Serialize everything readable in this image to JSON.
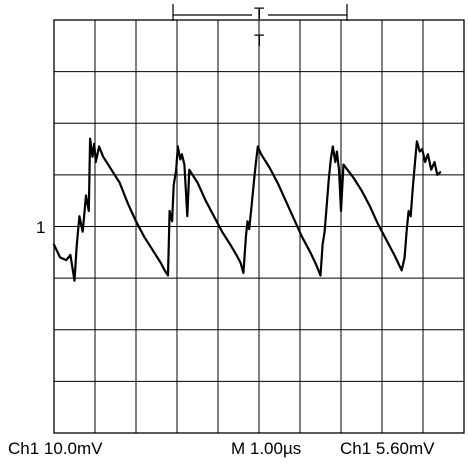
{
  "header": {
    "cursor_marker_label": "T",
    "trigger_marker_label": "T"
  },
  "left_marker": {
    "label": "1"
  },
  "footer": {
    "ch1_scale": "Ch1 10.0mV",
    "timebase": "M 1.00µs",
    "trigger_level": "Ch1 5.60mV"
  },
  "colors": {
    "trace": "#000000",
    "grid": "#000000",
    "background": "#ffffff"
  },
  "chart_data": {
    "type": "line",
    "title": "",
    "xlabel": "",
    "ylabel": "",
    "grid": true,
    "x_divisions": 10,
    "y_divisions": 8,
    "xlim": [
      0,
      10
    ],
    "ylim": [
      -4,
      4
    ],
    "units": {
      "x": "div",
      "y": "div"
    },
    "series": [
      {
        "values": [
          [
            0.0,
            -0.35
          ],
          [
            0.15,
            -0.6
          ],
          [
            0.3,
            -0.65
          ],
          [
            0.4,
            -0.55
          ],
          [
            0.5,
            -1.05
          ],
          [
            0.55,
            -0.4
          ],
          [
            0.62,
            0.2
          ],
          [
            0.7,
            -0.1
          ],
          [
            0.78,
            0.6
          ],
          [
            0.85,
            0.3
          ],
          [
            0.88,
            1.7
          ],
          [
            0.94,
            1.35
          ],
          [
            0.98,
            1.6
          ],
          [
            1.02,
            1.25
          ],
          [
            1.1,
            1.55
          ],
          [
            1.2,
            1.35
          ],
          [
            1.4,
            1.1
          ],
          [
            1.6,
            0.85
          ],
          [
            1.8,
            0.45
          ],
          [
            2.0,
            0.1
          ],
          [
            2.2,
            -0.2
          ],
          [
            2.4,
            -0.45
          ],
          [
            2.6,
            -0.7
          ],
          [
            2.7,
            -0.85
          ],
          [
            2.78,
            -0.95
          ],
          [
            2.82,
            0.3
          ],
          [
            2.88,
            0.1
          ],
          [
            2.92,
            0.8
          ],
          [
            2.98,
            1.1
          ],
          [
            3.02,
            1.55
          ],
          [
            3.08,
            1.3
          ],
          [
            3.12,
            1.4
          ],
          [
            3.18,
            1.2
          ],
          [
            3.25,
            0.2
          ],
          [
            3.3,
            1.1
          ],
          [
            3.5,
            0.85
          ],
          [
            3.7,
            0.5
          ],
          [
            3.9,
            0.2
          ],
          [
            4.1,
            -0.1
          ],
          [
            4.3,
            -0.35
          ],
          [
            4.45,
            -0.55
          ],
          [
            4.55,
            -0.7
          ],
          [
            4.62,
            -0.9
          ],
          [
            4.68,
            -0.2
          ],
          [
            4.72,
            0.1
          ],
          [
            4.76,
            -0.05
          ],
          [
            4.82,
            0.4
          ],
          [
            4.88,
            0.9
          ],
          [
            4.92,
            1.2
          ],
          [
            4.97,
            1.55
          ],
          [
            5.05,
            1.4
          ],
          [
            5.25,
            1.15
          ],
          [
            5.45,
            0.85
          ],
          [
            5.65,
            0.5
          ],
          [
            5.85,
            0.15
          ],
          [
            6.05,
            -0.2
          ],
          [
            6.25,
            -0.5
          ],
          [
            6.4,
            -0.75
          ],
          [
            6.5,
            -0.95
          ],
          [
            6.55,
            -0.35
          ],
          [
            6.6,
            -0.1
          ],
          [
            6.65,
            0.4
          ],
          [
            6.7,
            0.9
          ],
          [
            6.75,
            1.3
          ],
          [
            6.8,
            1.55
          ],
          [
            6.86,
            1.25
          ],
          [
            6.9,
            1.45
          ],
          [
            6.95,
            1.1
          ],
          [
            7.0,
            0.3
          ],
          [
            7.06,
            1.2
          ],
          [
            7.3,
            0.95
          ],
          [
            7.5,
            0.7
          ],
          [
            7.7,
            0.4
          ],
          [
            7.9,
            0.05
          ],
          [
            8.1,
            -0.25
          ],
          [
            8.3,
            -0.55
          ],
          [
            8.48,
            -0.85
          ],
          [
            8.55,
            -0.6
          ],
          [
            8.6,
            -0.1
          ],
          [
            8.65,
            0.3
          ],
          [
            8.7,
            0.2
          ],
          [
            8.75,
            0.75
          ],
          [
            8.8,
            1.2
          ],
          [
            8.85,
            1.65
          ],
          [
            8.92,
            1.45
          ],
          [
            8.98,
            1.5
          ],
          [
            9.05,
            1.25
          ],
          [
            9.12,
            1.4
          ],
          [
            9.2,
            1.1
          ],
          [
            9.28,
            1.25
          ],
          [
            9.35,
            1.0
          ],
          [
            9.42,
            1.05
          ]
        ]
      }
    ]
  }
}
